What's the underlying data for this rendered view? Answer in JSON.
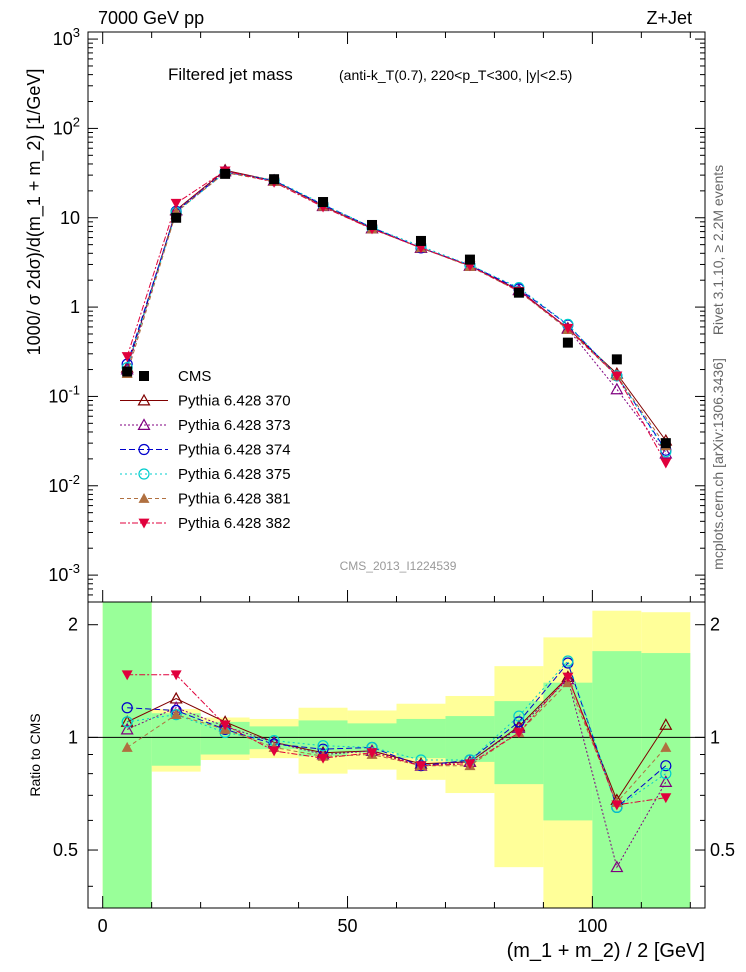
{
  "header": {
    "left": "7000 GeV pp",
    "right": "Z+Jet"
  },
  "title": {
    "main": "Filtered jet mass",
    "sub": "(anti-k_T(0.7), 220<p_T<300, |y|<2.5)"
  },
  "side_labels": {
    "rivet": "Rivet 3.1.10, ≥ 2.2M events",
    "mcplots": "mcplots.cern.ch [arXiv:1306.3436]"
  },
  "watermark": "CMS_2013_I1224539",
  "colors": {
    "band_green": "#99ff99",
    "band_yellow": "#ffff99"
  },
  "chart_data": {
    "type": "scatter",
    "x": [
      5,
      15,
      25,
      35,
      45,
      55,
      65,
      75,
      85,
      95,
      105,
      115
    ],
    "bin_edges": [
      0,
      10,
      20,
      30,
      40,
      50,
      60,
      70,
      80,
      90,
      100,
      110,
      120
    ],
    "xlabel": "(m_1 + m_2) / 2 [GeV]",
    "ylabel": "1000/ σ 2dσ)/d(m_1 + m_2) [1/GeV]",
    "ratio_ylabel": "Ratio to CMS",
    "xlim": [
      -3,
      123
    ],
    "ylim": [
      0.0005,
      1200
    ],
    "ratio_ylim": [
      0.35,
      2.3
    ],
    "yscale": "log",
    "x_ticks": [
      "0",
      "50",
      "100"
    ],
    "y_ticks": [
      "10^-3",
      "10^-2",
      "10^-1",
      "1",
      "10",
      "10^2",
      "10^3"
    ],
    "ratio_ticks": [
      "0.5",
      "1",
      "2"
    ],
    "legend_position": "middle-left",
    "data": {
      "name": "CMS",
      "color": "#000000",
      "marker": "square",
      "values": [
        0.19,
        10.0,
        31.0,
        27.0,
        15.0,
        8.3,
        5.5,
        3.4,
        1.45,
        0.4,
        0.26,
        0.03
      ]
    },
    "series": [
      {
        "name": "Pythia 6.428 370",
        "color": "#800000",
        "dash": "",
        "marker": "triangle-open",
        "values": [
          0.21,
          12.2,
          34.0,
          26.0,
          13.6,
          7.6,
          4.6,
          2.9,
          1.55,
          0.58,
          0.18,
          0.032
        ],
        "ratio": [
          1.1,
          1.27,
          1.1,
          0.97,
          0.91,
          0.92,
          0.85,
          0.86,
          1.07,
          1.45,
          0.68,
          1.08
        ]
      },
      {
        "name": "Pythia 6.428 373",
        "color": "#800080",
        "dash": "2,2",
        "marker": "triangle-open",
        "values": [
          0.2,
          12.0,
          33.0,
          26.2,
          13.5,
          7.6,
          4.6,
          2.9,
          1.55,
          0.57,
          0.12,
          0.023
        ],
        "ratio": [
          1.05,
          1.2,
          1.07,
          0.97,
          0.9,
          0.92,
          0.84,
          0.86,
          1.06,
          1.43,
          0.45,
          0.76
        ]
      },
      {
        "name": "Pythia 6.428 374",
        "color": "#0000cc",
        "dash": "6,3",
        "marker": "circle-open",
        "values": [
          0.23,
          11.8,
          32.5,
          26.0,
          14.0,
          7.8,
          4.6,
          2.95,
          1.6,
          0.63,
          0.17,
          0.025
        ],
        "ratio": [
          1.2,
          1.18,
          1.05,
          0.96,
          0.93,
          0.94,
          0.84,
          0.87,
          1.1,
          1.58,
          0.65,
          0.84
        ]
      },
      {
        "name": "Pythia 6.428 375",
        "color": "#00cccc",
        "dash": "2,3",
        "marker": "circle-open",
        "values": [
          0.21,
          11.5,
          32.0,
          26.5,
          14.2,
          7.8,
          4.8,
          2.95,
          1.65,
          0.64,
          0.17,
          0.024
        ],
        "ratio": [
          1.1,
          1.15,
          1.03,
          0.98,
          0.95,
          0.94,
          0.87,
          0.87,
          1.14,
          1.6,
          0.65,
          0.8
        ]
      },
      {
        "name": "Pythia 6.428 381",
        "color": "#b07040",
        "dash": "4,3",
        "marker": "triangle-filled",
        "values": [
          0.18,
          11.5,
          32.0,
          25.5,
          13.4,
          7.5,
          4.6,
          2.85,
          1.5,
          0.56,
          0.17,
          0.028
        ],
        "ratio": [
          0.94,
          1.15,
          1.05,
          0.94,
          0.89,
          0.9,
          0.84,
          0.84,
          1.03,
          1.4,
          0.67,
          0.94
        ]
      },
      {
        "name": "Pythia 6.428 382",
        "color": "#e0003c",
        "dash": "6,2,2,2",
        "marker": "triangle-down-filled",
        "values": [
          0.28,
          14.5,
          33.5,
          25.0,
          13.2,
          7.5,
          4.6,
          2.9,
          1.5,
          0.58,
          0.17,
          0.018
        ],
        "ratio": [
          1.47,
          1.47,
          1.08,
          0.92,
          0.88,
          0.91,
          0.84,
          0.85,
          1.03,
          1.45,
          0.66,
          0.69
        ]
      }
    ],
    "bands": {
      "green": [
        [
          0.35,
          2.3
        ],
        [
          0.84,
          1.16
        ],
        [
          0.9,
          1.1
        ],
        [
          0.93,
          1.07
        ],
        [
          0.89,
          1.11
        ],
        [
          0.91,
          1.09
        ],
        [
          0.88,
          1.12
        ],
        [
          0.86,
          1.14
        ],
        [
          0.75,
          1.25
        ],
        [
          0.6,
          1.4
        ],
        [
          0.35,
          1.7
        ],
        [
          0.35,
          1.68
        ]
      ],
      "yellow": [
        [
          0.35,
          2.3
        ],
        [
          0.81,
          1.19
        ],
        [
          0.87,
          1.13
        ],
        [
          0.88,
          1.12
        ],
        [
          0.8,
          1.2
        ],
        [
          0.82,
          1.18
        ],
        [
          0.77,
          1.23
        ],
        [
          0.71,
          1.29
        ],
        [
          0.45,
          1.55
        ],
        [
          0.35,
          1.85
        ],
        [
          0.35,
          2.18
        ],
        [
          0.35,
          2.16
        ]
      ]
    }
  }
}
